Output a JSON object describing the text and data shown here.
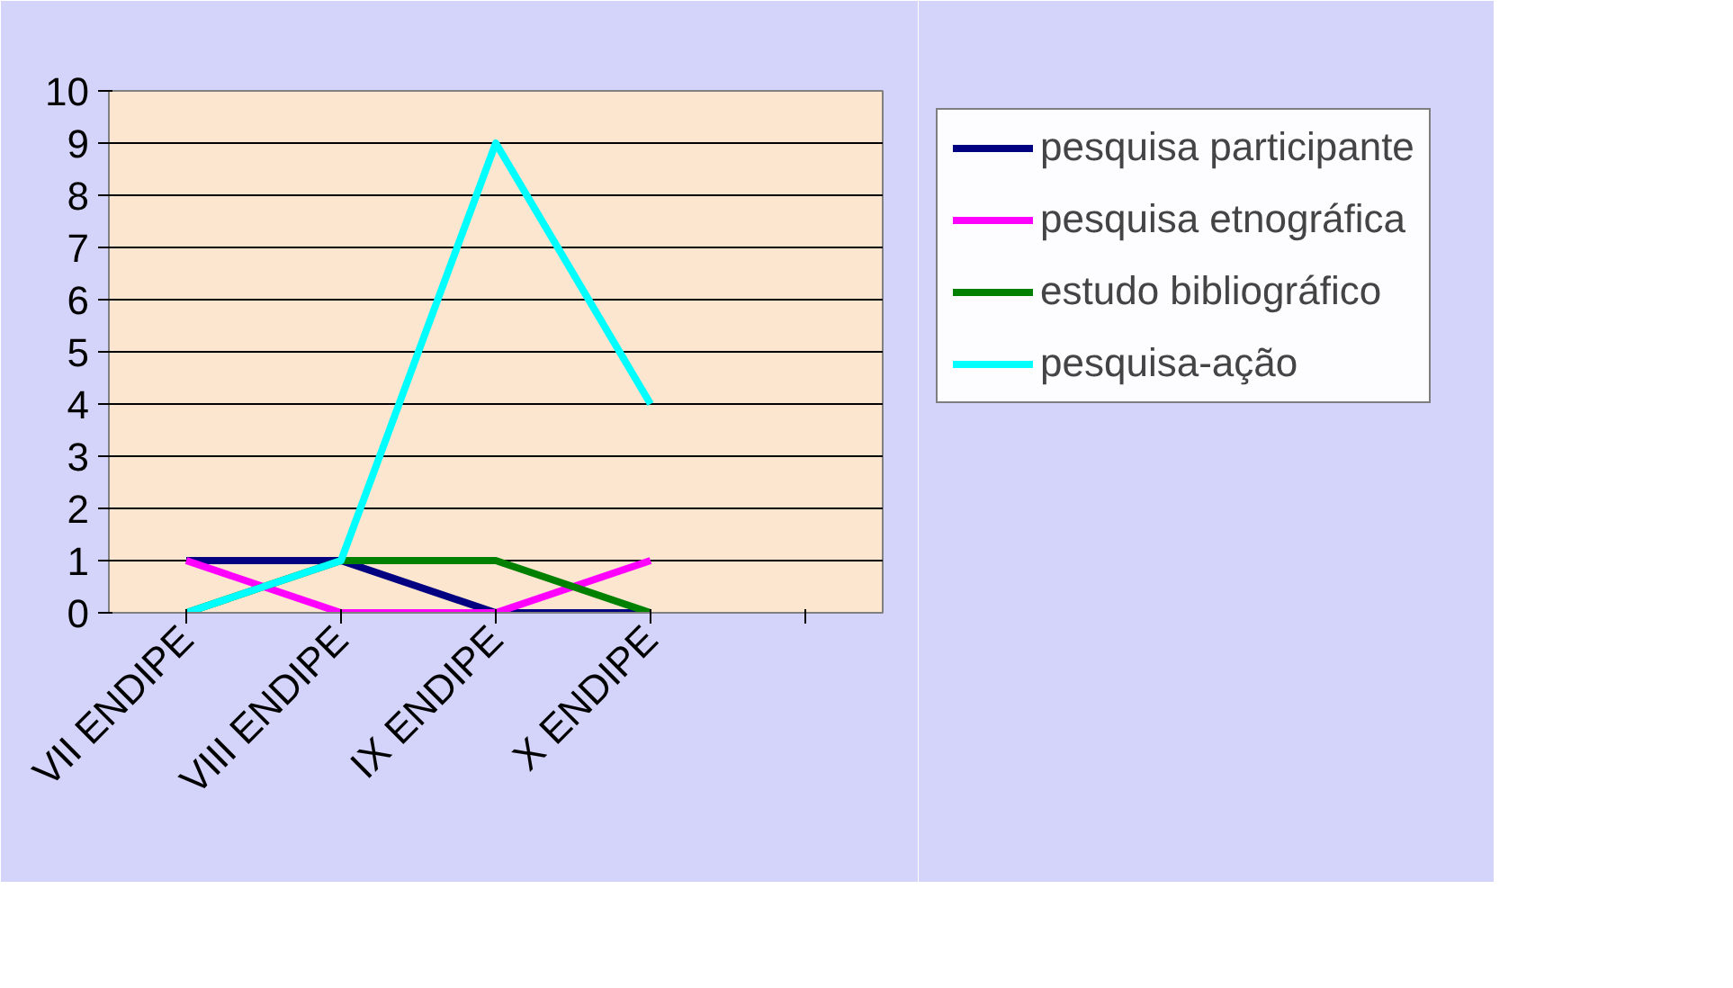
{
  "chart_data": {
    "type": "line",
    "categories": [
      "VII ENDIPE",
      "VIII ENDIPE",
      "IX ENDIPE",
      "X ENDIPE",
      null
    ],
    "series": [
      {
        "name": "pesquisa participante",
        "color": "#000080",
        "values": [
          1,
          1,
          0,
          0,
          null
        ]
      },
      {
        "name": "pesquisa etnográfica",
        "color": "#ff00ff",
        "values": [
          1,
          0,
          0,
          1,
          null
        ]
      },
      {
        "name": "estudo bibliográfico",
        "color": "#008000",
        "values": [
          0,
          1,
          1,
          0,
          null
        ]
      },
      {
        "name": "pesquisa-ação",
        "color": "#00ffff",
        "values": [
          0,
          1,
          9,
          4,
          null
        ]
      }
    ],
    "ylim": [
      0,
      10
    ],
    "yticks": [
      0,
      1,
      2,
      3,
      4,
      5,
      6,
      7,
      8,
      9,
      10
    ],
    "grid": "y",
    "legend": "right",
    "marker": "none",
    "line_style": "solid"
  }
}
